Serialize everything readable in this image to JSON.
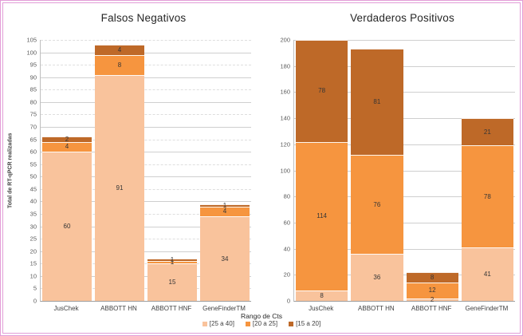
{
  "figure": {
    "border_color": "#e29dd7",
    "background": "#ffffff"
  },
  "legend": {
    "title": "Rango de Cts",
    "items": [
      {
        "label": "[25 a 40]",
        "color": "#F9C39C"
      },
      {
        "label": "[20 a 25]",
        "color": "#F6953F"
      },
      {
        "label": "[15 a 20]",
        "color": "#BE6928"
      }
    ]
  },
  "chart_data": [
    {
      "type": "bar",
      "stacked": true,
      "title": "Falsos Negativos",
      "ylabel": "Total de RT-qPCR realizadas",
      "xlabel": "",
      "categories": [
        "JusChek",
        "ABBOTT HN",
        "ABBOTT HNF",
        "GeneFinderTM"
      ],
      "series": [
        {
          "name": "[25 a 40]",
          "color": "#F9C39C",
          "values": [
            60,
            91,
            15,
            34
          ]
        },
        {
          "name": "[20 a 25]",
          "color": "#F6953F",
          "values": [
            4,
            8,
            1,
            4
          ]
        },
        {
          "name": "[15 a 20]",
          "color": "#BE6928",
          "values": [
            2,
            4,
            1,
            1
          ]
        }
      ],
      "totals": [
        66,
        103,
        17,
        39
      ],
      "ylim": [
        0,
        105
      ],
      "ytick_step": 5,
      "grid": true,
      "legend_position": "bottom-shared"
    },
    {
      "type": "bar",
      "stacked": true,
      "title": "Verdaderos Positivos",
      "ylabel": "",
      "xlabel": "",
      "categories": [
        "JusChek",
        "ABBOTT HN",
        "ABBOTT HNF",
        "GeneFinderTM"
      ],
      "series": [
        {
          "name": "[25 a 40]",
          "color": "#F9C39C",
          "values": [
            8,
            36,
            2,
            41
          ]
        },
        {
          "name": "[20 a 25]",
          "color": "#F6953F",
          "values": [
            114,
            76,
            12,
            78
          ]
        },
        {
          "name": "[15 a 20]",
          "color": "#BE6928",
          "values": [
            78,
            81,
            8,
            21
          ]
        }
      ],
      "totals": [
        200,
        193,
        22,
        140
      ],
      "ylim": [
        0,
        200
      ],
      "ytick_step": 20,
      "grid": true,
      "legend_position": "bottom-shared"
    }
  ]
}
